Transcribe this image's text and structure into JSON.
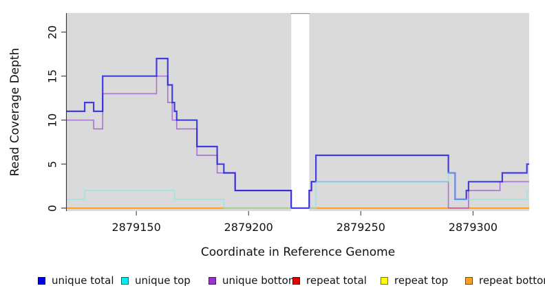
{
  "chart_data": {
    "type": "line",
    "subtype": "step",
    "title": "",
    "xlabel": "Coordinate in Reference Genome",
    "ylabel": "Read Coverage Depth",
    "x_ticks": [
      2879150,
      2879200,
      2879250,
      2879300
    ],
    "y_ticks": [
      0,
      5,
      10,
      15,
      20
    ],
    "x_range": [
      2879119,
      2879325
    ],
    "y_range": [
      0,
      22
    ],
    "grid": false,
    "panel_bg": "#DBDADA",
    "gap_region": {
      "x_start": 2879219,
      "x_end": 2879227,
      "fill": "#FFFFFF"
    },
    "legend_position": "bottom",
    "series": [
      {
        "key": "repeat-total",
        "name": "repeat total",
        "stroke": "rgba(220,30,30,0.9)",
        "stroke_width": 1.2,
        "segments": [
          [
            [
              2879119,
              0
            ],
            [
              2879219,
              0
            ]
          ],
          [
            [
              2879227,
              0
            ],
            [
              2879325,
              0
            ]
          ]
        ]
      },
      {
        "key": "repeat-top",
        "name": "repeat top",
        "stroke": "rgba(250,250,60,0.9)",
        "stroke_width": 1.2,
        "segments": [
          [
            [
              2879119,
              0
            ],
            [
              2879219,
              0
            ]
          ],
          [
            [
              2879227,
              0
            ],
            [
              2879325,
              0
            ]
          ]
        ]
      },
      {
        "key": "repeat-bottom",
        "name": "repeat bottom",
        "stroke": "rgba(255,148,16,0.95)",
        "stroke_width": 1.8,
        "segments": [
          [
            [
              2879119,
              0
            ],
            [
              2879219,
              0
            ]
          ],
          [
            [
              2879227,
              0
            ],
            [
              2879325,
              0
            ]
          ]
        ]
      },
      {
        "key": "unique-bottom",
        "name": "unique bottom",
        "stroke": "rgba(140,60,205,0.62)",
        "stroke_width": 1.7,
        "segments": [
          [
            [
              2879119,
              10
            ],
            [
              2879131,
              9
            ],
            [
              2879135,
              13
            ],
            [
              2879159,
              15
            ],
            [
              2879164,
              12
            ],
            [
              2879166,
              10
            ],
            [
              2879168,
              9
            ],
            [
              2879177,
              6
            ],
            [
              2879186,
              4
            ],
            [
              2879194,
              2
            ],
            [
              2879219,
              0
            ],
            [
              2879227,
              2
            ],
            [
              2879228,
              3
            ],
            [
              2879289,
              0
            ],
            [
              2879298,
              2
            ],
            [
              2879312,
              3
            ],
            [
              2879325,
              3
            ]
          ]
        ]
      },
      {
        "key": "unique-total",
        "name": "unique total",
        "stroke": "rgba(28,24,216,0.8)",
        "stroke_width": 2.2,
        "segments": [
          [
            [
              2879119,
              11
            ],
            [
              2879127,
              12
            ],
            [
              2879131,
              11
            ],
            [
              2879135,
              15
            ],
            [
              2879159,
              17
            ],
            [
              2879164,
              14
            ],
            [
              2879166,
              12
            ],
            [
              2879167,
              11
            ],
            [
              2879168,
              10
            ],
            [
              2879177,
              7
            ],
            [
              2879186,
              5
            ],
            [
              2879189,
              4
            ],
            [
              2879194,
              2
            ],
            [
              2879219,
              0
            ],
            [
              2879227,
              2
            ],
            [
              2879228,
              3
            ],
            [
              2879230,
              6
            ],
            [
              2879289,
              4
            ],
            [
              2879292,
              1
            ],
            [
              2879297,
              2
            ],
            [
              2879298,
              3
            ],
            [
              2879313,
              4
            ],
            [
              2879324,
              5
            ],
            [
              2879325,
              5
            ]
          ]
        ]
      },
      {
        "key": "unique-top",
        "name": "unique top",
        "stroke": "rgba(110,238,235,0.6)",
        "stroke_width": 1.7,
        "segments": [
          [
            [
              2879119,
              1
            ],
            [
              2879127,
              2
            ],
            [
              2879167,
              1
            ],
            [
              2879189,
              0
            ],
            [
              2879219,
              0
            ]
          ],
          [
            [
              2879227,
              0
            ],
            [
              2879230,
              3
            ],
            [
              2879289,
              4
            ],
            [
              2879292,
              1
            ],
            [
              2879324,
              2
            ],
            [
              2879325,
              2
            ]
          ]
        ]
      }
    ],
    "legend": [
      {
        "key": "unique-total",
        "label": "unique total",
        "color": "#0000E6"
      },
      {
        "key": "unique-top",
        "label": "unique top",
        "color": "#00EEEE"
      },
      {
        "key": "unique-bottom",
        "label": "unique bottom",
        "color": "#9933CC"
      },
      {
        "key": "repeat-total",
        "label": "repeat total",
        "color": "#E10000"
      },
      {
        "key": "repeat-top",
        "label": "repeat top",
        "color": "#FFFF00"
      },
      {
        "key": "repeat-bottom",
        "label": "repeat bottom",
        "color": "#FF9E1A"
      }
    ]
  }
}
